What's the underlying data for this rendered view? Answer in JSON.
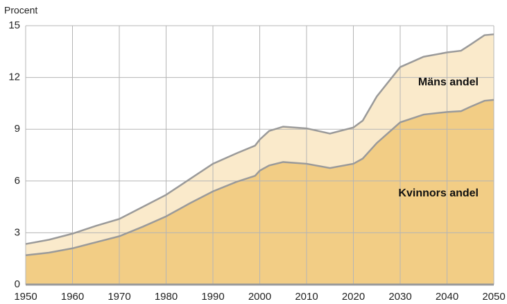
{
  "chart_data": {
    "type": "stacked_area",
    "y_axis_label": "Procent",
    "x": [
      1950,
      1955,
      1960,
      1965,
      1970,
      1975,
      1980,
      1985,
      1990,
      1995,
      1999,
      2000,
      2002,
      2005,
      2010,
      2015,
      2020,
      2022,
      2025,
      2030,
      2035,
      2040,
      2043,
      2045,
      2048,
      2050
    ],
    "series": [
      {
        "name": "Kvinnors andel",
        "color": "#f2cd85",
        "values": [
          1.7,
          1.85,
          2.1,
          2.45,
          2.8,
          3.35,
          3.95,
          4.7,
          5.4,
          5.95,
          6.3,
          6.6,
          6.9,
          7.1,
          7.0,
          6.75,
          7.0,
          7.3,
          8.2,
          9.4,
          9.85,
          10.0,
          10.05,
          10.3,
          10.65,
          10.7
        ]
      },
      {
        "name": "Mäns andel",
        "color": "#faeacb",
        "values": [
          0.65,
          0.75,
          0.85,
          0.95,
          1.0,
          1.15,
          1.25,
          1.4,
          1.6,
          1.65,
          1.75,
          1.8,
          2.0,
          2.05,
          2.05,
          2.0,
          2.1,
          2.2,
          2.7,
          3.2,
          3.35,
          3.45,
          3.5,
          3.6,
          3.8,
          3.8
        ]
      }
    ],
    "line_color": "#9a9a9a",
    "xlim": [
      1950,
      2050
    ],
    "xticks": [
      1950,
      1960,
      1970,
      1980,
      1990,
      2000,
      2010,
      2020,
      2030,
      2040,
      2050
    ],
    "ylim": [
      0,
      15
    ],
    "yticks": [
      0,
      3,
      6,
      9,
      12,
      15
    ],
    "grid": true
  }
}
